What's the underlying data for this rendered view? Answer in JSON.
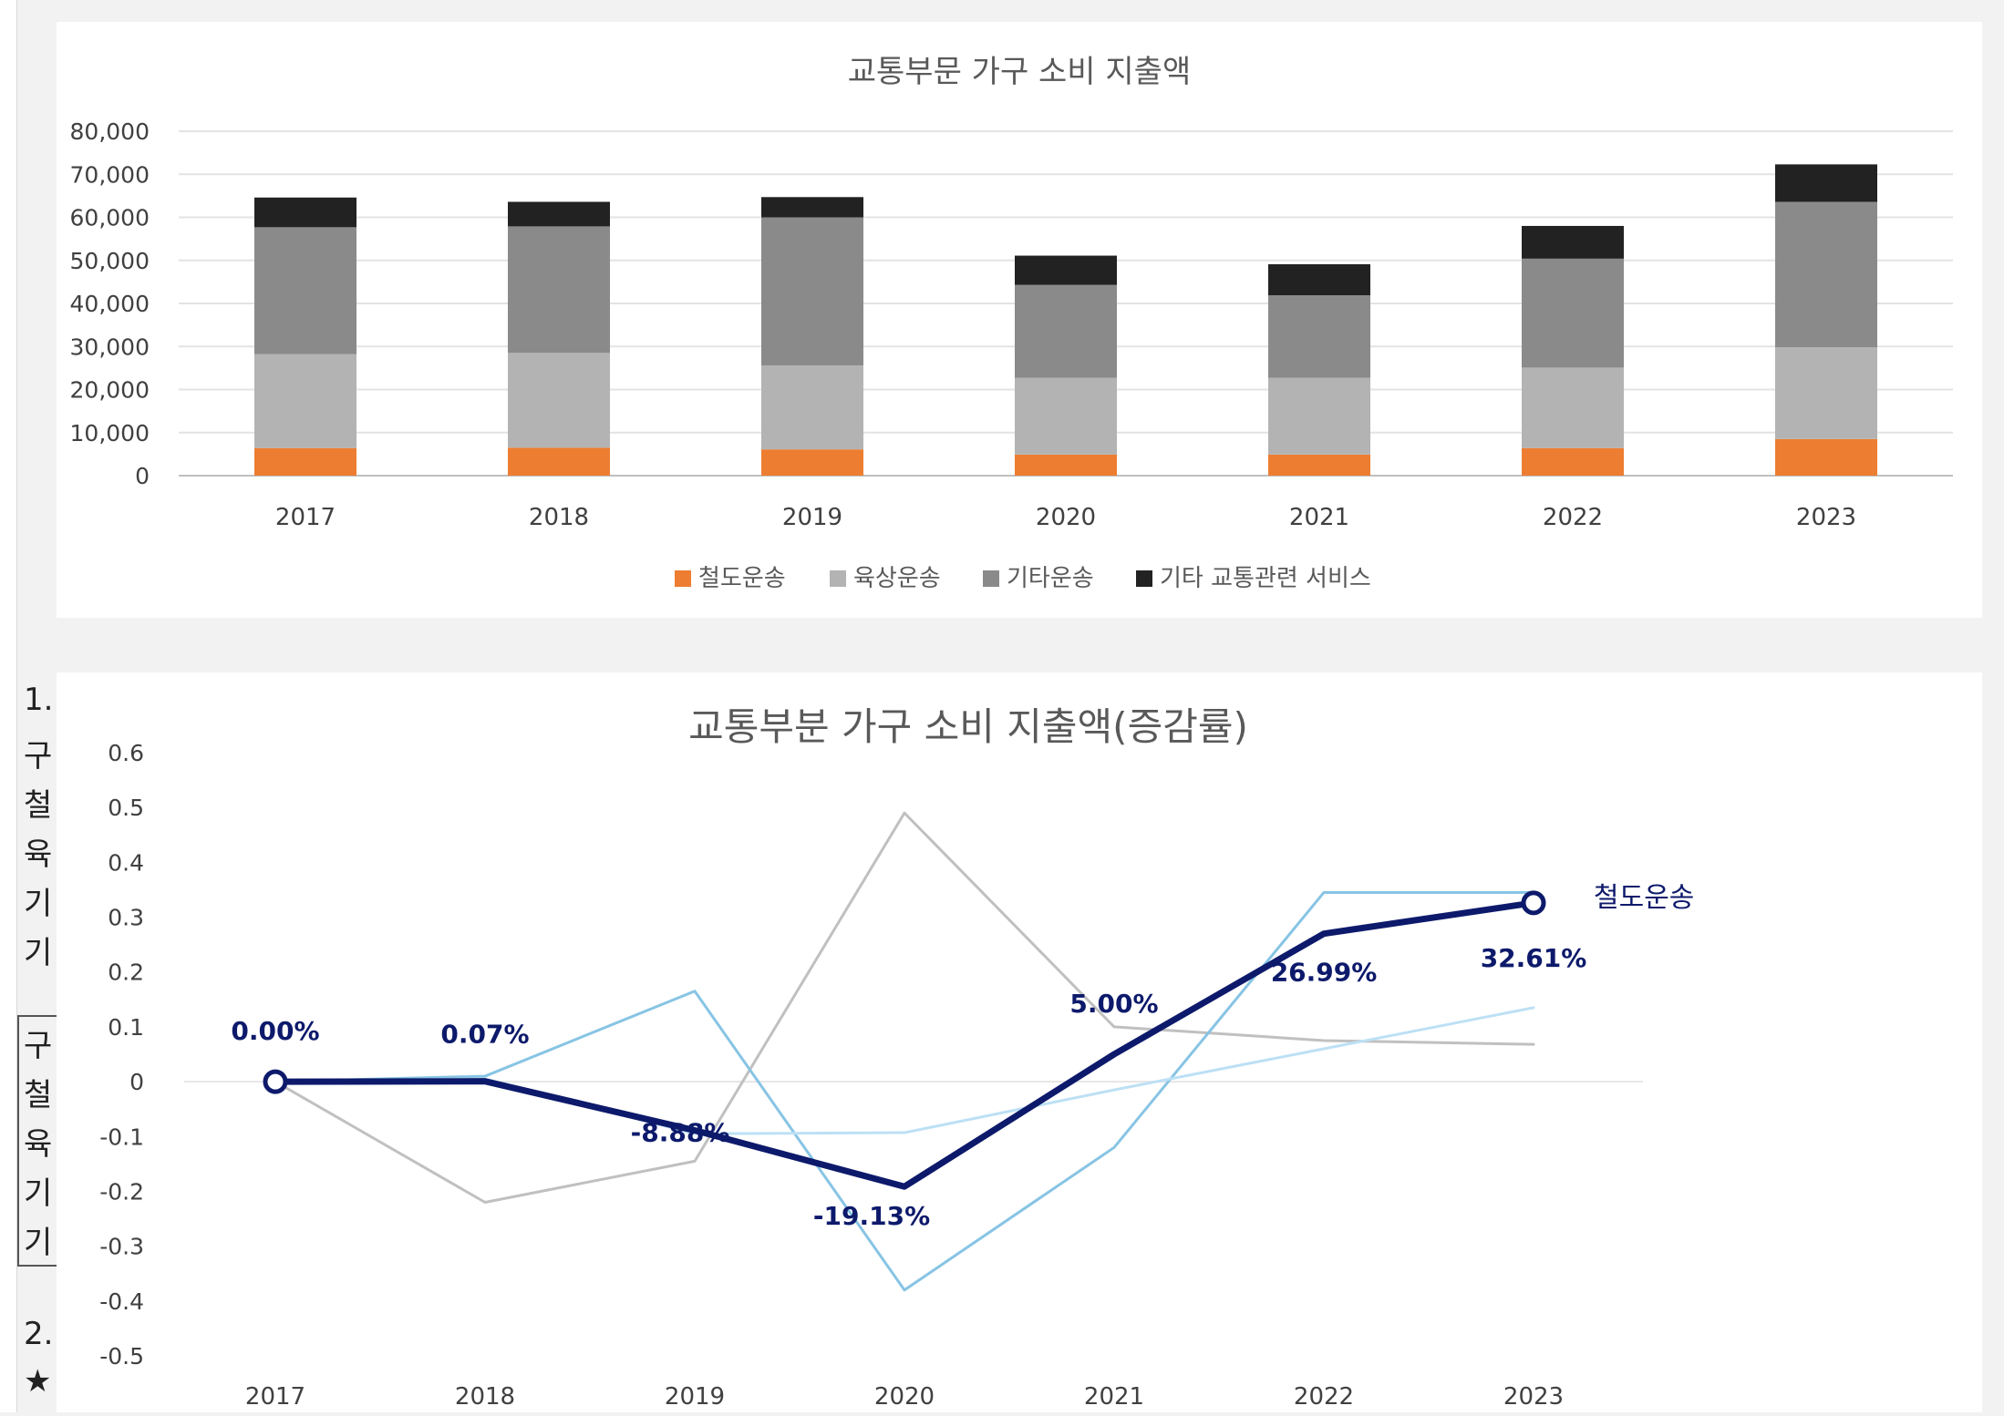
{
  "left_column": {
    "chars": [
      "1.",
      "구",
      "철",
      "육",
      "기",
      "기",
      "구",
      "철",
      "육",
      "기",
      "기",
      "2.",
      "★"
    ]
  },
  "chart_data": [
    {
      "type": "bar",
      "stacked": true,
      "title": "교통부문 가구 소비 지출액",
      "categories": [
        "2017",
        "2018",
        "2019",
        "2020",
        "2021",
        "2022",
        "2023"
      ],
      "series": [
        {
          "name": "철도운송",
          "color": "#ed7d31",
          "values": [
            6400,
            6500,
            6100,
            4900,
            4900,
            6400,
            8500
          ]
        },
        {
          "name": "육상운송",
          "color": "#b3b3b3",
          "values": [
            21800,
            22000,
            19500,
            17800,
            17800,
            18700,
            21300
          ]
        },
        {
          "name": "기타운송",
          "color": "#8a8a8a",
          "values": [
            29500,
            29400,
            34400,
            21600,
            19200,
            25300,
            33800
          ]
        },
        {
          "name": "기타 교통관련 서비스",
          "color": "#222222",
          "values": [
            6900,
            5700,
            4700,
            6800,
            7200,
            7600,
            8700
          ]
        }
      ],
      "ylim": [
        0,
        80000
      ],
      "yticks": [
        "0",
        "10,000",
        "20,000",
        "30,000",
        "40,000",
        "50,000",
        "60,000",
        "70,000",
        "80,000"
      ],
      "grid": true,
      "legend": "bottom"
    },
    {
      "type": "line",
      "title": "교통부분 가구 소비 지출액(증감률)",
      "categories": [
        "2017",
        "2018",
        "2019",
        "2020",
        "2021",
        "2022",
        "2023"
      ],
      "ylim": [
        -0.5,
        0.6
      ],
      "yticks": [
        "0.6",
        "0.5",
        "0.4",
        "0.3",
        "0.2",
        "0.1",
        "0",
        "-0.1",
        "-0.2",
        "-0.3",
        "-0.4",
        "-0.5"
      ],
      "series": [
        {
          "name": "",
          "color": "#c0c0c0",
          "width": 3,
          "values": [
            0,
            -0.22,
            -0.145,
            0.49,
            0.1,
            0.075,
            0.068
          ]
        },
        {
          "name": "",
          "color": "#87c4e4",
          "width": 3,
          "values": [
            0,
            0.01,
            0.165,
            -0.38,
            -0.12,
            0.345,
            0.345
          ]
        },
        {
          "name": "",
          "color": "#bde0f5",
          "width": 3,
          "values": [
            0,
            0.005,
            -0.095,
            -0.093,
            -0.015,
            0.06,
            0.135
          ]
        },
        {
          "name": "철도운송",
          "color": "#0d1a6b",
          "width": 7,
          "highlight": true,
          "values": [
            0,
            0.0007,
            -0.0888,
            -0.1913,
            0.05,
            0.2699,
            0.3261
          ],
          "labels": [
            "0.00%",
            "0.07%",
            "-8.88%",
            "-19.13%",
            "5.00%",
            "26.99%",
            "32.61%"
          ]
        }
      ],
      "grid": false,
      "legend": "none"
    }
  ]
}
